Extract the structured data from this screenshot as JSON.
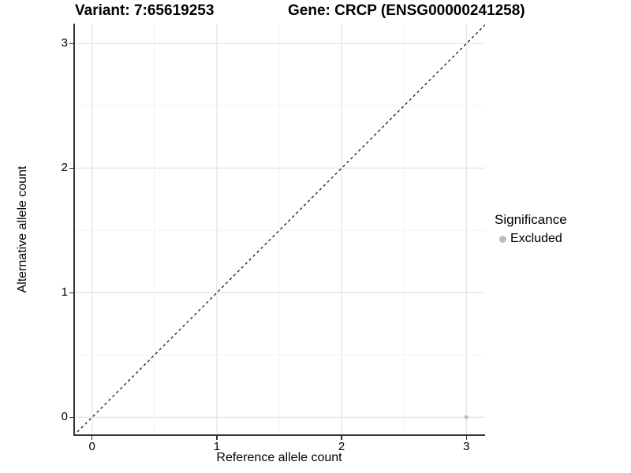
{
  "chart_data": {
    "type": "scatter",
    "title_left": "Variant: 7:65619253",
    "title_right": "Gene: CRCP (ENSG00000241258)",
    "xlabel": "Reference allele count",
    "ylabel": "Alternative allele count",
    "x_ticks": [
      0,
      1,
      2,
      3
    ],
    "y_ticks": [
      0,
      1,
      2,
      3
    ],
    "x_minor_ticks": [
      0.5,
      1.5,
      2.5
    ],
    "y_minor_ticks": [
      0.5,
      1.5,
      2.5
    ],
    "xlim": [
      -0.15,
      3.15
    ],
    "ylim": [
      -0.15,
      3.16
    ],
    "grid": "major and minor gridlines on white background",
    "identity_line": {
      "slope": 1,
      "intercept": 0,
      "style": "dashed",
      "color": "#1a1a1a"
    },
    "series": [
      {
        "name": "Excluded",
        "color": "#bdbdbd",
        "points": [
          {
            "x": 3,
            "y": 0
          }
        ]
      }
    ],
    "legend": {
      "title": "Significance",
      "position": "right",
      "entries": [
        {
          "label": "Excluded",
          "color": "#bdbdbd"
        }
      ]
    },
    "colors": {
      "grid_major": "#e5e5e5",
      "grid_minor": "#f2f2f2",
      "axis_line": "#333333",
      "tick_mark": "#333333",
      "text": "#000000"
    }
  }
}
